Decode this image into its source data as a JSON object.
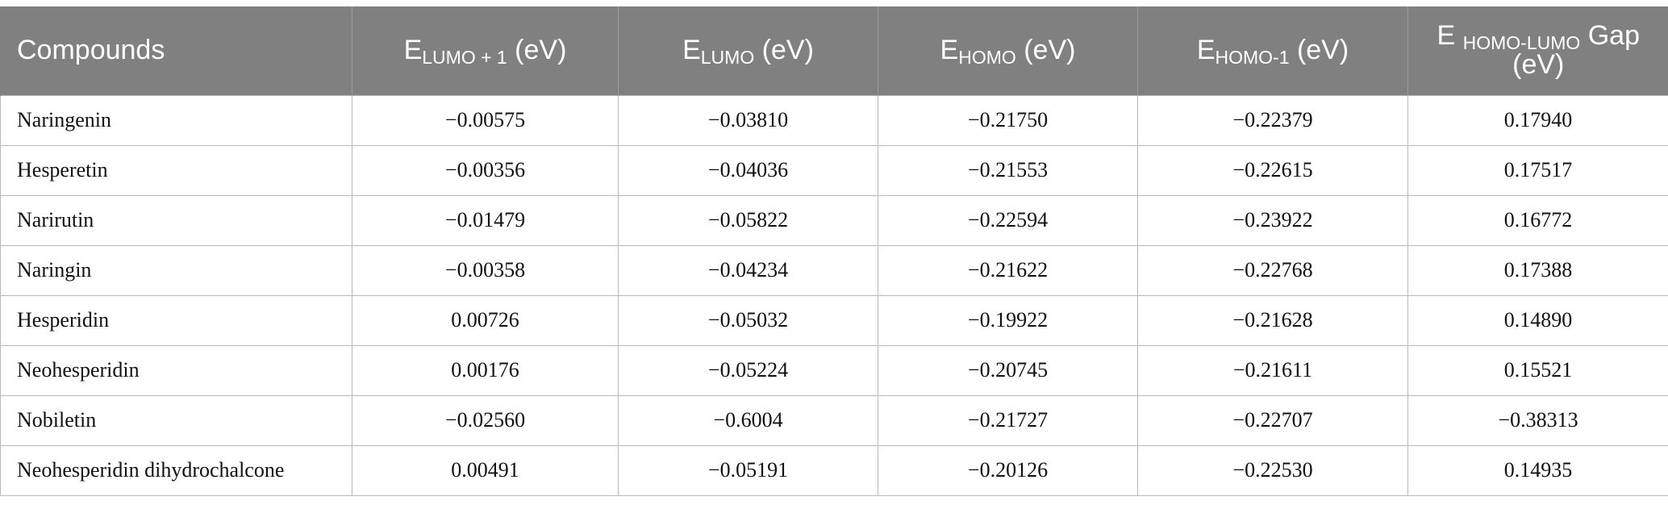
{
  "table": {
    "headers": [
      {
        "main": "Compounds",
        "sub": "",
        "suffix": ""
      },
      {
        "main": "E",
        "sub": "LUMO + 1",
        "suffix": " (eV)"
      },
      {
        "main": "E",
        "sub": "LUMO",
        "suffix": " (eV)"
      },
      {
        "main": "E",
        "sub": "HOMO",
        "suffix": " (eV)"
      },
      {
        "main": "E",
        "sub": "HOMO-1",
        "suffix": " (eV)"
      },
      {
        "main": "E ",
        "sub": "HOMO-LUMO",
        "suffix": " Gap (eV)"
      }
    ],
    "rows": [
      [
        "Naringenin",
        "−0.00575",
        "−0.03810",
        "−0.21750",
        "−0.22379",
        "0.17940"
      ],
      [
        "Hesperetin",
        "−0.00356",
        "−0.04036",
        "−0.21553",
        "−0.22615",
        "0.17517"
      ],
      [
        "Narirutin",
        "−0.01479",
        "−0.05822",
        "−0.22594",
        "−0.23922",
        "0.16772"
      ],
      [
        "Naringin",
        "−0.00358",
        "−0.04234",
        "−0.21622",
        "−0.22768",
        "0.17388"
      ],
      [
        "Hesperidin",
        "0.00726",
        "−0.05032",
        "−0.19922",
        "−0.21628",
        "0.14890"
      ],
      [
        "Neohesperidin",
        "0.00176",
        "−0.05224",
        "−0.20745",
        "−0.21611",
        "0.15521"
      ],
      [
        "Nobiletin",
        "−0.02560",
        "−0.6004",
        "−0.21727",
        "−0.22707",
        "−0.38313"
      ],
      [
        "Neohesperidin dihydrochalcone",
        "0.00491",
        "−0.05191",
        "−0.20126",
        "−0.22530",
        "0.14935"
      ]
    ]
  }
}
